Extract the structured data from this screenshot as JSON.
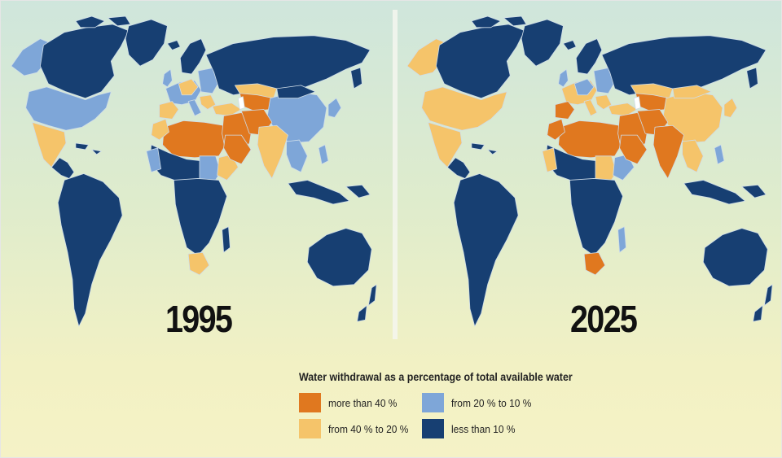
{
  "maps": [
    {
      "year": "1995"
    },
    {
      "year": "2025"
    }
  ],
  "legend": {
    "title": "Water withdrawal as a percentage of total available water",
    "items": [
      {
        "label": "more than 40 %",
        "color": "#e0781f"
      },
      {
        "label": "from 20 % to 10 %",
        "color": "#7ea6d8"
      },
      {
        "label": "from 40 % to 20 %",
        "color": "#f5c46a"
      },
      {
        "label": "less than 10 %",
        "color": "#173f72"
      }
    ]
  },
  "colors": {
    "more_than_40": "#e0781f",
    "from_40_to_20": "#f5c46a",
    "from_20_to_10": "#7ea6d8",
    "less_than_10": "#173f72",
    "border": "#cfdde8"
  }
}
